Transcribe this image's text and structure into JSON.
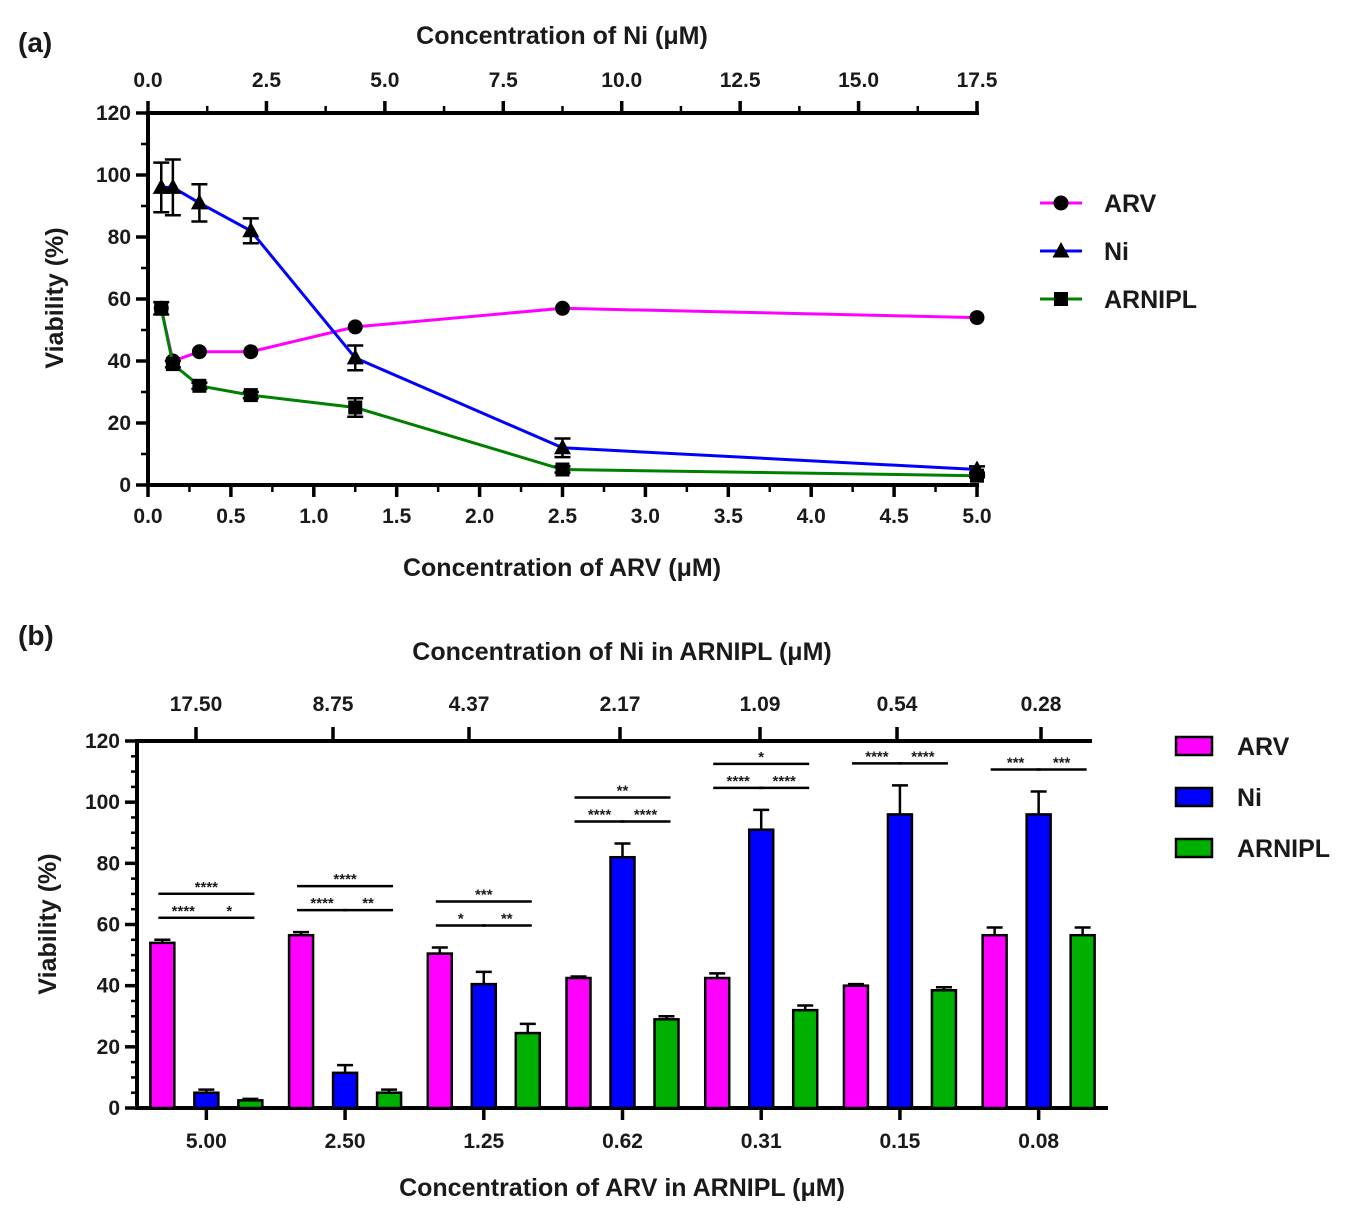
{
  "chart_data": [
    {
      "panel": "(a)",
      "type": "line",
      "xlabel": "Concentration of ARV  (μM)",
      "x2label": "Concentration of Ni (μM)",
      "ylabel": "Viability (%)",
      "xlim": [
        0,
        5
      ],
      "x2lim": [
        0,
        17.5
      ],
      "ylim": [
        0,
        120
      ],
      "x_ticks": [
        "0.0",
        "0.5",
        "1.0",
        "1.5",
        "2.0",
        "2.5",
        "3.0",
        "3.5",
        "4.0",
        "4.5",
        "5.0"
      ],
      "x2_ticks": [
        "0.0",
        "2.5",
        "5.0",
        "7.5",
        "10.0",
        "12.5",
        "15.0",
        "17.5"
      ],
      "y_ticks": [
        "0",
        "20",
        "40",
        "60",
        "80",
        "100",
        "120"
      ],
      "legend_position": "right",
      "series": [
        {
          "name": "ARV",
          "color": "#ff00ff",
          "marker": "circle",
          "x": [
            0.08,
            0.15,
            0.31,
            0.62,
            1.25,
            2.5,
            5.0
          ],
          "y": [
            57,
            40,
            43,
            43,
            51,
            57,
            54
          ],
          "err": [
            0,
            0,
            0,
            0,
            0,
            0,
            0
          ]
        },
        {
          "name": "Ni",
          "color": "#0000ff",
          "marker": "triangle",
          "x": [
            0.08,
            0.15,
            0.31,
            0.62,
            1.25,
            2.5,
            5.0
          ],
          "y": [
            96,
            96,
            91,
            82,
            41,
            12,
            5
          ],
          "err": [
            8,
            9,
            6,
            4,
            4,
            3,
            1
          ]
        },
        {
          "name": "ARNIPL",
          "color": "#008000",
          "marker": "square",
          "x": [
            0.08,
            0.15,
            0.31,
            0.62,
            1.25,
            2.5,
            5.0
          ],
          "y": [
            57,
            39,
            32,
            29,
            25,
            5,
            3
          ],
          "err": [
            2,
            1,
            1,
            1,
            3,
            1,
            0.5
          ]
        }
      ]
    },
    {
      "panel": "(b)",
      "type": "bar",
      "xlabel": "Concentration of ARV in ARNIPL  (μM)",
      "x2label": "Concentration of Ni in ARNIPL  (μM)",
      "ylabel": "Viability (%)",
      "ylim": [
        0,
        120
      ],
      "y_ticks": [
        "0",
        "20",
        "40",
        "60",
        "80",
        "100",
        "120"
      ],
      "categories": [
        "5.00",
        "2.50",
        "1.25",
        "0.62",
        "0.31",
        "0.15",
        "0.08"
      ],
      "top_categories": [
        "17.50",
        "8.75",
        "4.37",
        "2.17",
        "1.09",
        "0.54",
        "0.28"
      ],
      "legend_position": "right",
      "series": [
        {
          "name": "ARV",
          "color": "#ff00ff",
          "values": [
            54,
            56.5,
            50.5,
            42.5,
            42.5,
            40,
            56.5
          ],
          "err": [
            1,
            1,
            2,
            0.5,
            1.5,
            0.5,
            2.5
          ]
        },
        {
          "name": "Ni",
          "color": "#0000ff",
          "values": [
            5,
            11.5,
            40.5,
            82,
            91,
            96,
            96
          ],
          "err": [
            1,
            2.5,
            4,
            4.5,
            6.5,
            9.5,
            7.5
          ]
        },
        {
          "name": "ARNIPL",
          "color": "#00b000",
          "values": [
            2.5,
            5,
            24.5,
            29,
            32,
            38.5,
            56.5
          ],
          "err": [
            0.5,
            1,
            3,
            1,
            1.5,
            1,
            2.5
          ]
        }
      ],
      "significance": [
        {
          "group": 0,
          "from": 0,
          "to": 2,
          "level": 2,
          "label": "****"
        },
        {
          "group": 0,
          "from": 0,
          "to": 1,
          "level": 1,
          "label": "****"
        },
        {
          "group": 0,
          "from": 1,
          "to": 2,
          "level": 1,
          "label": "*"
        },
        {
          "group": 1,
          "from": 0,
          "to": 2,
          "level": 2,
          "label": "****"
        },
        {
          "group": 1,
          "from": 0,
          "to": 1,
          "level": 1,
          "label": "****"
        },
        {
          "group": 1,
          "from": 1,
          "to": 2,
          "level": 1,
          "label": "**"
        },
        {
          "group": 2,
          "from": 0,
          "to": 2,
          "level": 2,
          "label": "***"
        },
        {
          "group": 2,
          "from": 0,
          "to": 1,
          "level": 1,
          "label": "*"
        },
        {
          "group": 2,
          "from": 1,
          "to": 2,
          "level": 1,
          "label": "**"
        },
        {
          "group": 3,
          "from": 0,
          "to": 2,
          "level": 2,
          "label": "**"
        },
        {
          "group": 3,
          "from": 0,
          "to": 1,
          "level": 1,
          "label": "****"
        },
        {
          "group": 3,
          "from": 1,
          "to": 2,
          "level": 1,
          "label": "****"
        },
        {
          "group": 4,
          "from": 0,
          "to": 2,
          "level": 2,
          "label": "*"
        },
        {
          "group": 4,
          "from": 0,
          "to": 1,
          "level": 1,
          "label": "****"
        },
        {
          "group": 4,
          "from": 1,
          "to": 2,
          "level": 1,
          "label": "****"
        },
        {
          "group": 5,
          "from": 0,
          "to": 1,
          "level": 1,
          "label": "****"
        },
        {
          "group": 5,
          "from": 1,
          "to": 2,
          "level": 1,
          "label": "****"
        },
        {
          "group": 6,
          "from": 0,
          "to": 1,
          "level": 1,
          "label": "***"
        },
        {
          "group": 6,
          "from": 1,
          "to": 2,
          "level": 1,
          "label": "***"
        }
      ]
    }
  ]
}
